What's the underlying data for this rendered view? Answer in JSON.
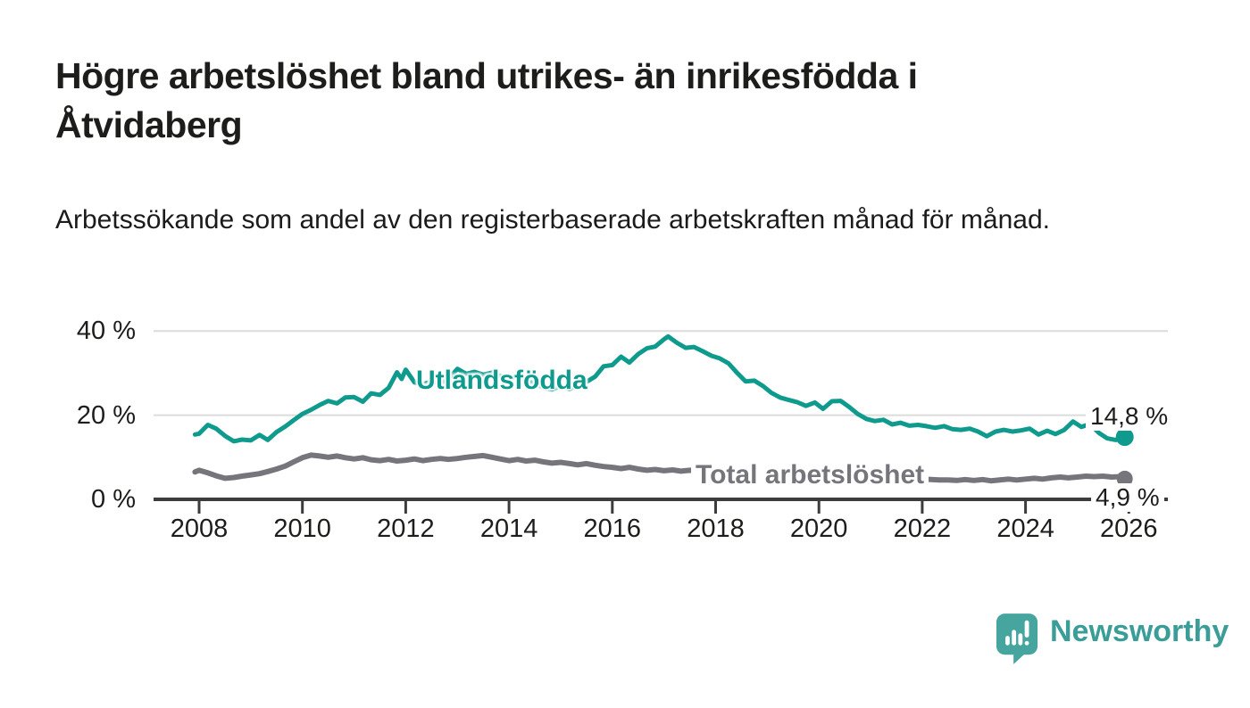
{
  "header": {
    "title": "Högre arbetslöshet bland utrikes- än inrikesfödda i Åtvidaberg",
    "subtitle": "Arbetssökande som andel av den registerbaserade arbetskraften månad för månad."
  },
  "footer": {
    "brand": "Newsworthy"
  },
  "colors": {
    "series_foreign_born": "#0e9b8d",
    "series_total": "#76757b",
    "axis": "#3c3c3c",
    "gridline": "#dcdcdc",
    "text": "#1d1d1b",
    "logo_teal": "#47a59f"
  },
  "chart_data": {
    "type": "line",
    "title": "Högre arbetslöshet bland utrikes- än inrikesfödda i Åtvidaberg",
    "subtitle": "Arbetssökande som andel av den registerbaserade arbetskraften månad för månad.",
    "xlabel": "",
    "ylabel": "",
    "unit": "%",
    "ylim": [
      0,
      40
    ],
    "grid": "horizontal",
    "legend_position": "inline-labels",
    "yticks": [
      {
        "value": 0,
        "label": "0 %"
      },
      {
        "value": 20,
        "label": "20 %"
      },
      {
        "value": 40,
        "label": "40 %"
      }
    ],
    "xticks": [
      {
        "value": 2008,
        "label": "2008"
      },
      {
        "value": 2010,
        "label": "2010"
      },
      {
        "value": 2012,
        "label": "2012"
      },
      {
        "value": 2014,
        "label": "2014"
      },
      {
        "value": 2016,
        "label": "2016"
      },
      {
        "value": 2018,
        "label": "2018"
      },
      {
        "value": 2020,
        "label": "2020"
      },
      {
        "value": 2022,
        "label": "2022"
      },
      {
        "value": 2024,
        "label": "2024"
      },
      {
        "value": 2026,
        "label": "2026"
      }
    ],
    "series": [
      {
        "name": "Utlandsfödda",
        "color": "#0e9b8d",
        "end_label": "14,8 %",
        "end_value": 14.8,
        "points": [
          [
            2007.92,
            15.4
          ],
          [
            2008,
            15.6
          ],
          [
            2008.17,
            17.7
          ],
          [
            2008.33,
            16.8
          ],
          [
            2008.5,
            15.1
          ],
          [
            2008.67,
            13.8
          ],
          [
            2008.83,
            14.2
          ],
          [
            2009,
            14.0
          ],
          [
            2009.17,
            15.3
          ],
          [
            2009.33,
            14.1
          ],
          [
            2009.5,
            16.0
          ],
          [
            2009.67,
            17.3
          ],
          [
            2009.83,
            18.8
          ],
          [
            2010,
            20.3
          ],
          [
            2010.17,
            21.3
          ],
          [
            2010.33,
            22.4
          ],
          [
            2010.5,
            23.4
          ],
          [
            2010.67,
            22.8
          ],
          [
            2010.83,
            24.2
          ],
          [
            2011,
            24.3
          ],
          [
            2011.17,
            23.2
          ],
          [
            2011.33,
            25.2
          ],
          [
            2011.5,
            24.8
          ],
          [
            2011.67,
            26.5
          ],
          [
            2011.83,
            30.2
          ],
          [
            2011.92,
            28.6
          ],
          [
            2012,
            30.8
          ],
          [
            2012.17,
            27.8
          ],
          [
            2012.33,
            27.3
          ],
          [
            2012.5,
            28.0
          ],
          [
            2012.67,
            27.6
          ],
          [
            2012.83,
            28.6
          ],
          [
            2013,
            31.0
          ],
          [
            2013.17,
            29.8
          ],
          [
            2013.33,
            30.3
          ],
          [
            2013.5,
            29.6
          ],
          [
            2013.67,
            30.1
          ],
          [
            2013.83,
            29.3
          ],
          [
            2014,
            28.7
          ],
          [
            2014.17,
            29.3
          ],
          [
            2014.33,
            28.3
          ],
          [
            2014.5,
            27.5
          ],
          [
            2014.67,
            26.5
          ],
          [
            2014.83,
            26.1
          ],
          [
            2015,
            26.9
          ],
          [
            2015.17,
            26.2
          ],
          [
            2015.33,
            27.1
          ],
          [
            2015.5,
            27.9
          ],
          [
            2015.67,
            29.2
          ],
          [
            2015.83,
            31.6
          ],
          [
            2016,
            31.9
          ],
          [
            2016.17,
            33.9
          ],
          [
            2016.33,
            32.5
          ],
          [
            2016.5,
            34.5
          ],
          [
            2016.67,
            35.9
          ],
          [
            2016.83,
            36.3
          ],
          [
            2017,
            38.0
          ],
          [
            2017.08,
            38.7
          ],
          [
            2017.25,
            37.2
          ],
          [
            2017.42,
            36.0
          ],
          [
            2017.58,
            36.2
          ],
          [
            2017.75,
            35.2
          ],
          [
            2017.92,
            34.1
          ],
          [
            2018.08,
            33.5
          ],
          [
            2018.25,
            32.3
          ],
          [
            2018.42,
            30.0
          ],
          [
            2018.58,
            28.0
          ],
          [
            2018.75,
            28.2
          ],
          [
            2018.92,
            26.9
          ],
          [
            2019.08,
            25.3
          ],
          [
            2019.25,
            24.2
          ],
          [
            2019.42,
            23.6
          ],
          [
            2019.58,
            23.1
          ],
          [
            2019.75,
            22.2
          ],
          [
            2019.92,
            23.0
          ],
          [
            2020.08,
            21.5
          ],
          [
            2020.25,
            23.3
          ],
          [
            2020.42,
            23.4
          ],
          [
            2020.58,
            22.0
          ],
          [
            2020.75,
            20.3
          ],
          [
            2020.92,
            19.1
          ],
          [
            2021.08,
            18.6
          ],
          [
            2021.25,
            18.9
          ],
          [
            2021.42,
            17.8
          ],
          [
            2021.58,
            18.2
          ],
          [
            2021.75,
            17.5
          ],
          [
            2021.92,
            17.7
          ],
          [
            2022.08,
            17.4
          ],
          [
            2022.25,
            17.0
          ],
          [
            2022.42,
            17.4
          ],
          [
            2022.58,
            16.7
          ],
          [
            2022.75,
            16.5
          ],
          [
            2022.92,
            16.8
          ],
          [
            2023.08,
            16.1
          ],
          [
            2023.25,
            15.0
          ],
          [
            2023.42,
            16.1
          ],
          [
            2023.58,
            16.5
          ],
          [
            2023.75,
            16.1
          ],
          [
            2023.92,
            16.4
          ],
          [
            2024.08,
            16.8
          ],
          [
            2024.25,
            15.4
          ],
          [
            2024.42,
            16.3
          ],
          [
            2024.58,
            15.5
          ],
          [
            2024.75,
            16.5
          ],
          [
            2024.92,
            18.5
          ],
          [
            2025.08,
            17.2
          ],
          [
            2025.25,
            17.9
          ],
          [
            2025.42,
            15.8
          ],
          [
            2025.58,
            14.5
          ],
          [
            2025.75,
            14.1
          ],
          [
            2025.92,
            14.8
          ]
        ]
      },
      {
        "name": "Total arbetslöshet",
        "color": "#76757b",
        "end_label": "4,9 %",
        "end_value": 4.9,
        "points": [
          [
            2007.92,
            6.5
          ],
          [
            2008,
            6.9
          ],
          [
            2008.17,
            6.3
          ],
          [
            2008.33,
            5.6
          ],
          [
            2008.5,
            5.0
          ],
          [
            2008.67,
            5.2
          ],
          [
            2008.83,
            5.5
          ],
          [
            2009,
            5.8
          ],
          [
            2009.17,
            6.1
          ],
          [
            2009.33,
            6.6
          ],
          [
            2009.5,
            7.2
          ],
          [
            2009.67,
            7.9
          ],
          [
            2009.83,
            8.9
          ],
          [
            2010,
            9.9
          ],
          [
            2010.17,
            10.5
          ],
          [
            2010.33,
            10.3
          ],
          [
            2010.5,
            10.0
          ],
          [
            2010.67,
            10.3
          ],
          [
            2010.83,
            9.9
          ],
          [
            2011,
            9.6
          ],
          [
            2011.17,
            9.9
          ],
          [
            2011.33,
            9.4
          ],
          [
            2011.5,
            9.2
          ],
          [
            2011.67,
            9.5
          ],
          [
            2011.83,
            9.1
          ],
          [
            2012,
            9.3
          ],
          [
            2012.17,
            9.6
          ],
          [
            2012.33,
            9.2
          ],
          [
            2012.5,
            9.5
          ],
          [
            2012.67,
            9.7
          ],
          [
            2012.83,
            9.5
          ],
          [
            2013,
            9.7
          ],
          [
            2013.17,
            10.0
          ],
          [
            2013.33,
            10.2
          ],
          [
            2013.5,
            10.4
          ],
          [
            2013.67,
            10.0
          ],
          [
            2013.83,
            9.6
          ],
          [
            2014,
            9.2
          ],
          [
            2014.17,
            9.5
          ],
          [
            2014.33,
            9.1
          ],
          [
            2014.5,
            9.3
          ],
          [
            2014.67,
            8.9
          ],
          [
            2014.83,
            8.6
          ],
          [
            2015,
            8.8
          ],
          [
            2015.17,
            8.5
          ],
          [
            2015.33,
            8.2
          ],
          [
            2015.5,
            8.5
          ],
          [
            2015.67,
            8.1
          ],
          [
            2015.83,
            7.8
          ],
          [
            2016,
            7.6
          ],
          [
            2016.17,
            7.3
          ],
          [
            2016.33,
            7.6
          ],
          [
            2016.5,
            7.2
          ],
          [
            2016.67,
            6.9
          ],
          [
            2016.83,
            7.1
          ],
          [
            2017,
            6.8
          ],
          [
            2017.17,
            7.0
          ],
          [
            2017.33,
            6.7
          ],
          [
            2017.5,
            6.9
          ],
          [
            2017.67,
            6.6
          ],
          [
            2017.83,
            6.8
          ],
          [
            2018,
            7.0
          ],
          [
            2018.17,
            6.7
          ],
          [
            2018.33,
            6.4
          ],
          [
            2018.5,
            6.6
          ],
          [
            2018.67,
            6.3
          ],
          [
            2018.83,
            6.1
          ],
          [
            2019,
            6.3
          ],
          [
            2019.17,
            6.0
          ],
          [
            2019.33,
            5.8
          ],
          [
            2019.5,
            5.9
          ],
          [
            2019.67,
            5.7
          ],
          [
            2019.83,
            5.8
          ],
          [
            2020,
            6.0
          ],
          [
            2020.17,
            6.3
          ],
          [
            2020.33,
            6.5
          ],
          [
            2020.5,
            6.3
          ],
          [
            2020.67,
            6.1
          ],
          [
            2020.83,
            5.9
          ],
          [
            2021,
            5.7
          ],
          [
            2021.17,
            5.5
          ],
          [
            2021.33,
            5.3
          ],
          [
            2021.5,
            5.1
          ],
          [
            2021.67,
            5.0
          ],
          [
            2021.83,
            4.9
          ],
          [
            2022,
            4.8
          ],
          [
            2022.17,
            4.7
          ],
          [
            2022.33,
            4.6
          ],
          [
            2022.5,
            4.6
          ],
          [
            2022.67,
            4.5
          ],
          [
            2022.83,
            4.7
          ],
          [
            2023,
            4.5
          ],
          [
            2023.17,
            4.7
          ],
          [
            2023.33,
            4.4
          ],
          [
            2023.5,
            4.6
          ],
          [
            2023.67,
            4.8
          ],
          [
            2023.83,
            4.6
          ],
          [
            2024,
            4.8
          ],
          [
            2024.17,
            5.0
          ],
          [
            2024.33,
            4.8
          ],
          [
            2024.5,
            5.1
          ],
          [
            2024.67,
            5.3
          ],
          [
            2024.83,
            5.1
          ],
          [
            2025,
            5.3
          ],
          [
            2025.17,
            5.5
          ],
          [
            2025.33,
            5.4
          ],
          [
            2025.5,
            5.5
          ],
          [
            2025.67,
            5.3
          ],
          [
            2025.83,
            5.4
          ],
          [
            2025.92,
            4.9
          ]
        ]
      }
    ]
  }
}
